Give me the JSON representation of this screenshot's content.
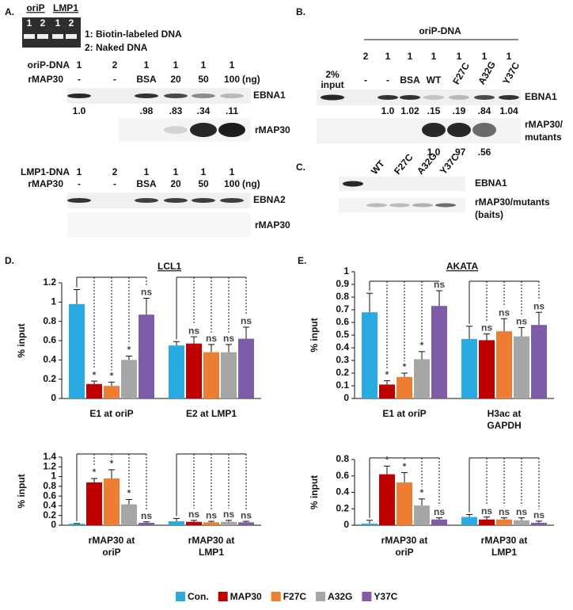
{
  "panel_a": {
    "label": "A.",
    "gel": {
      "headers": [
        "oriP",
        "LMP1"
      ],
      "lanes": [
        "1",
        "2",
        "1",
        "2"
      ],
      "legend": [
        "1: Biotin-labeled DNA",
        "2: Naked DNA"
      ]
    },
    "oriP_blot": {
      "dna_label": "oriP-DNA",
      "dna_lanes": [
        "1",
        "2",
        "1",
        "1",
        "1",
        "1"
      ],
      "protein_label": "rMAP30",
      "protein_lanes": [
        "-",
        "-",
        "BSA",
        "20",
        "50",
        "100"
      ],
      "unit": "(ng)",
      "bands": [
        "EBNA1",
        "rMAP30"
      ],
      "quant": [
        "1.0",
        null,
        ".98",
        ".83",
        ".34",
        ".11"
      ]
    },
    "lmp1_blot": {
      "dna_label": "LMP1-DNA",
      "dna_lanes": [
        "1",
        "2",
        "1",
        "1",
        "1",
        "1"
      ],
      "protein_label": "rMAP30",
      "protein_lanes": [
        "-",
        "-",
        "BSA",
        "20",
        "50",
        "100"
      ],
      "unit": "(ng)",
      "bands": [
        "EBNA2",
        "rMAP30"
      ]
    }
  },
  "panel_b": {
    "label": "B.",
    "header": "oriP-DNA",
    "input": [
      "2%",
      "input"
    ],
    "dna_lanes": [
      "2",
      "1",
      "1",
      "1",
      "1",
      "1",
      "1"
    ],
    "protein_lanes": [
      "-",
      "-",
      "BSA",
      "WT",
      "F27C",
      "A32G",
      "Y37C"
    ],
    "bands": [
      [
        "EBNA1"
      ],
      [
        "rMAP30/",
        "mutants"
      ]
    ],
    "quant_top": [
      null,
      "1.0",
      "1.02",
      ".15",
      ".19",
      ".84",
      "1.04"
    ],
    "quant_bottom": [
      null,
      null,
      null,
      "1.0",
      ".97",
      ".56",
      null
    ]
  },
  "panel_c": {
    "label": "C.",
    "lanes": [
      "WT",
      "F27C",
      "A32G",
      "Y37C"
    ],
    "bands": [
      [
        "EBNA1"
      ],
      [
        "rMAP30/mutants",
        "(baits)"
      ]
    ]
  },
  "chart_data": [
    {
      "type": "bar",
      "panel_label": "D.",
      "title": "LCL1",
      "ylabel": "% input",
      "categories": [
        [
          "E1 at oriP"
        ],
        [
          "E2 at LMP1"
        ]
      ],
      "ylim": [
        0,
        1.2
      ],
      "yticks": [
        0,
        0.2,
        0.4,
        0.6,
        0.8,
        1,
        1.2
      ],
      "series": [
        {
          "name": "Con.",
          "color": "#29abe2",
          "values": [
            0.98,
            0.55
          ],
          "errors": [
            0.15,
            0.04
          ]
        },
        {
          "name": "MAP30",
          "color": "#c00000",
          "values": [
            0.15,
            0.57
          ],
          "errors": [
            0.03,
            0.07
          ],
          "annotations": [
            "*",
            "ns"
          ]
        },
        {
          "name": "F27C",
          "color": "#ed7d31",
          "values": [
            0.13,
            0.48
          ],
          "errors": [
            0.04,
            0.08
          ],
          "annotations": [
            "*",
            "ns"
          ]
        },
        {
          "name": "A32G",
          "color": "#a6a6a6",
          "values": [
            0.4,
            0.48
          ],
          "errors": [
            0.04,
            0.08
          ],
          "annotations": [
            "*",
            "ns"
          ]
        },
        {
          "name": "Y37C",
          "color": "#7e5ca8",
          "values": [
            0.87,
            0.62
          ],
          "errors": [
            0.17,
            0.12
          ],
          "annotations": [
            "ns",
            "ns"
          ]
        }
      ]
    },
    {
      "type": "bar",
      "ylabel": "% input",
      "categories": [
        [
          "rMAP30 at",
          "oriP"
        ],
        [
          "rMAP30 at",
          "LMP1"
        ]
      ],
      "ylim": [
        0,
        1.4
      ],
      "yticks": [
        0,
        0.2,
        0.4,
        0.6,
        0.8,
        1,
        1.2,
        1.4
      ],
      "series": [
        {
          "color": "#29abe2",
          "values": [
            0.03,
            0.08
          ],
          "errors": [
            0.005,
            0.06
          ]
        },
        {
          "color": "#c00000",
          "values": [
            0.88,
            0.07
          ],
          "errors": [
            0.08,
            0.03
          ],
          "annotations": [
            "*",
            "ns"
          ]
        },
        {
          "color": "#ed7d31",
          "values": [
            0.96,
            0.06
          ],
          "errors": [
            0.18,
            0.02
          ],
          "annotations": [
            "*",
            "ns"
          ]
        },
        {
          "color": "#a6a6a6",
          "values": [
            0.43,
            0.07
          ],
          "errors": [
            0.1,
            0.03
          ],
          "annotations": [
            "*",
            "ns"
          ]
        },
        {
          "color": "#7e5ca8",
          "values": [
            0.05,
            0.06
          ],
          "errors": [
            0.02,
            0.02
          ],
          "annotations": [
            "ns",
            "ns"
          ]
        }
      ]
    },
    {
      "type": "bar",
      "panel_label": "E.",
      "title": "AKATA",
      "ylabel": "% input",
      "categories": [
        [
          "E1 at oriP"
        ],
        [
          "H3ac at",
          "GAPDH"
        ]
      ],
      "ylim": [
        0,
        1
      ],
      "yticks": [
        0,
        0.1,
        0.2,
        0.3,
        0.4,
        0.5,
        0.6,
        0.7,
        0.8,
        0.9,
        1
      ],
      "series": [
        {
          "color": "#29abe2",
          "values": [
            0.68,
            0.47
          ],
          "errors": [
            0.15,
            0.1
          ]
        },
        {
          "color": "#c00000",
          "values": [
            0.11,
            0.46
          ],
          "errors": [
            0.03,
            0.05
          ],
          "annotations": [
            "*",
            "ns"
          ]
        },
        {
          "color": "#ed7d31",
          "values": [
            0.17,
            0.53
          ],
          "errors": [
            0.03,
            0.1
          ],
          "annotations": [
            "*",
            "ns"
          ]
        },
        {
          "color": "#a6a6a6",
          "values": [
            0.31,
            0.49
          ],
          "errors": [
            0.06,
            0.07
          ],
          "annotations": [
            "*",
            "ns"
          ]
        },
        {
          "color": "#7e5ca8",
          "values": [
            0.73,
            0.58
          ],
          "errors": [
            0.12,
            0.1
          ],
          "annotations": [
            "ns",
            "ns"
          ]
        }
      ]
    },
    {
      "type": "bar",
      "ylabel": "% input",
      "categories": [
        [
          "rMAP30 at",
          "oriP"
        ],
        [
          "rMAP30 at",
          "LMP1"
        ]
      ],
      "ylim": [
        0,
        0.8
      ],
      "yticks": [
        0,
        0.2,
        0.4,
        0.6,
        0.8
      ],
      "series": [
        {
          "color": "#29abe2",
          "values": [
            0.02,
            0.1
          ],
          "errors": [
            0.04,
            0.03
          ]
        },
        {
          "color": "#c00000",
          "values": [
            0.62,
            0.07
          ],
          "errors": [
            0.1,
            0.03
          ],
          "annotations": [
            "*",
            "ns"
          ]
        },
        {
          "color": "#ed7d31",
          "values": [
            0.52,
            0.07
          ],
          "errors": [
            0.12,
            0.02
          ],
          "annotations": [
            "*",
            "ns"
          ]
        },
        {
          "color": "#a6a6a6",
          "values": [
            0.24,
            0.06
          ],
          "errors": [
            0.08,
            0.03
          ],
          "annotations": [
            "*",
            "ns"
          ]
        },
        {
          "color": "#7e5ca8",
          "values": [
            0.07,
            0.03
          ],
          "errors": [
            0.02,
            0.02
          ],
          "annotations": [
            "ns",
            "ns"
          ]
        }
      ]
    }
  ]
}
